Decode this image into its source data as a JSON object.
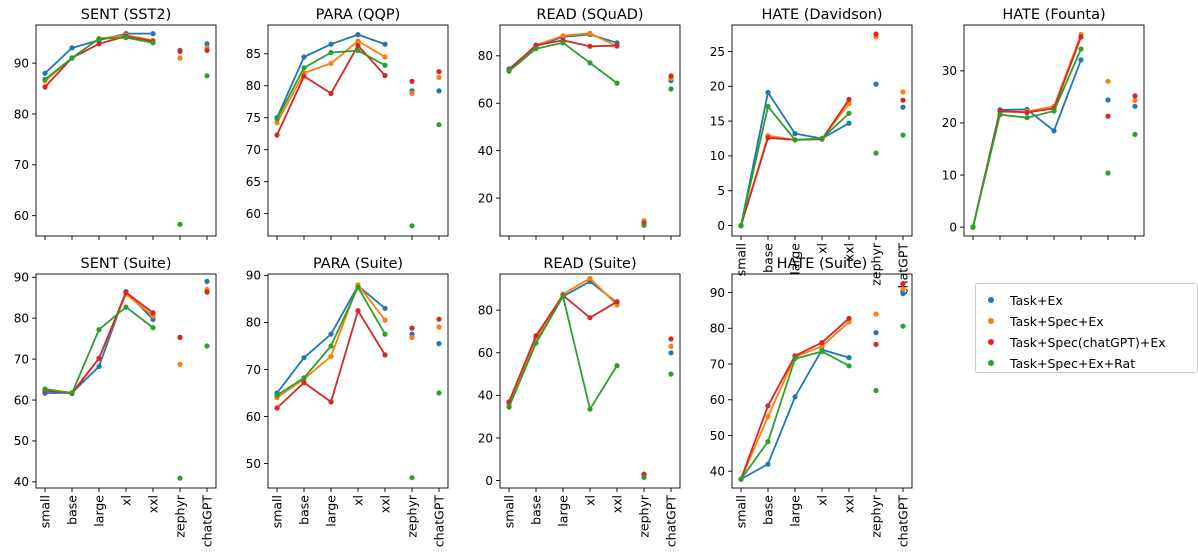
{
  "colors": {
    "Task+Ex": "#1f77b4",
    "Task+Spec+Ex": "#ff7f0e",
    "Task+Spec(chatGPT)+Ex": "#d62728",
    "Task+Spec+Ex+Rat": "#2ca02c"
  },
  "legend": {
    "items": [
      {
        "label": "Task+Ex",
        "color": "#1f77b4"
      },
      {
        "label": "Task+Spec+Ex",
        "color": "#ff7f0e"
      },
      {
        "label": "Task+Spec(chatGPT)+Ex",
        "color": "#d62728"
      },
      {
        "label": "Task+Spec+Ex+Rat",
        "color": "#2ca02c"
      }
    ]
  },
  "chart_data": [
    {
      "type": "line",
      "title": "SENT (SST2)",
      "categories": [
        "small",
        "base",
        "large",
        "xl",
        "xxl",
        "zephyr",
        "chatGPT"
      ],
      "yticks": [
        60,
        70,
        80,
        90
      ],
      "ylim": [
        56,
        97.5
      ],
      "series": [
        {
          "name": "Task+Ex",
          "values": [
            88,
            93,
            94.5,
            95.8,
            95.8,
            92.5,
            93.8
          ]
        },
        {
          "name": "Task+Spec+Ex",
          "values": [
            86.5,
            91,
            94.8,
            95.5,
            94.5,
            91,
            93
          ]
        },
        {
          "name": "Task+Spec(chatGPT)+Ex",
          "values": [
            85.3,
            91,
            93.8,
            95.3,
            94.3,
            92.3,
            92.5
          ]
        },
        {
          "name": "Task+Spec+Ex+Rat",
          "values": [
            86.8,
            91,
            94.8,
            95,
            94,
            58.3,
            87.5
          ]
        }
      ]
    },
    {
      "type": "line",
      "title": "PARA (QQP)",
      "categories": [
        "small",
        "base",
        "large",
        "xl",
        "xxl",
        "zephyr",
        "chatGPT"
      ],
      "yticks": [
        60,
        65,
        70,
        75,
        80,
        85
      ],
      "ylim": [
        56.5,
        89.5
      ],
      "series": [
        {
          "name": "Task+Ex",
          "values": [
            75,
            84.5,
            86.5,
            88,
            86.5,
            79.2,
            79.2
          ]
        },
        {
          "name": "Task+Spec+Ex",
          "values": [
            74.2,
            82,
            83.5,
            87,
            84.5,
            78.8,
            81.3
          ]
        },
        {
          "name": "Task+Spec(chatGPT)+Ex",
          "values": [
            72.3,
            81.5,
            78.8,
            86.3,
            81.6,
            80.7,
            82.2
          ]
        },
        {
          "name": "Task+Spec+Ex+Rat",
          "values": [
            74.8,
            82.8,
            85.2,
            85.5,
            83.2,
            58.1,
            73.9
          ]
        }
      ]
    },
    {
      "type": "line",
      "title": "READ (SQuAD)",
      "categories": [
        "small",
        "base",
        "large",
        "xl",
        "xxl",
        "zephyr",
        "chatGPT"
      ],
      "yticks": [
        20,
        40,
        60,
        80
      ],
      "ylim": [
        4,
        93
      ],
      "series": [
        {
          "name": "Task+Ex",
          "values": [
            74.5,
            84,
            88,
            89,
            85.5,
            9,
            69.5
          ]
        },
        {
          "name": "Task+Spec+Ex",
          "values": [
            74,
            84.5,
            88.5,
            89.5,
            84,
            10.5,
            70.5
          ]
        },
        {
          "name": "Task+Spec(chatGPT)+Ex",
          "values": [
            74,
            84.5,
            86.5,
            84,
            84.3,
            9.5,
            71.5
          ]
        },
        {
          "name": "Task+Spec+Ex+Rat",
          "values": [
            73.5,
            83,
            85.5,
            77,
            68.5,
            8.5,
            66
          ]
        }
      ]
    },
    {
      "type": "line",
      "title": "HATE (Davidson)",
      "categories": [
        "small",
        "base",
        "large",
        "xl",
        "xxl",
        "zephyr",
        "chatGPT"
      ],
      "yticks": [
        0,
        5,
        10,
        15,
        20,
        25
      ],
      "ylim": [
        -1.5,
        28.8
      ],
      "series": [
        {
          "name": "Task+Ex",
          "values": [
            0,
            19.1,
            13.2,
            12.5,
            14.7,
            20.3,
            17
          ]
        },
        {
          "name": "Task+Spec+Ex",
          "values": [
            0,
            12.9,
            12.3,
            12.5,
            17.5,
            27.1,
            19.2
          ]
        },
        {
          "name": "Task+Spec(chatGPT)+Ex",
          "values": [
            0,
            12.6,
            12.3,
            12.4,
            18.1,
            27.5,
            18
          ]
        },
        {
          "name": "Task+Spec+Ex+Rat",
          "values": [
            0,
            17.1,
            12.3,
            12.5,
            16.1,
            10.4,
            13
          ]
        }
      ]
    },
    {
      "type": "line",
      "title": "HATE (Founta)",
      "categories": [
        "small",
        "base",
        "large",
        "xl",
        "xxl",
        "zephyr",
        "chatGPT"
      ],
      "yticks": [
        0,
        10,
        20,
        30
      ],
      "ylim": [
        -1.7,
        38.8
      ],
      "series": [
        {
          "name": "Task+Ex",
          "values": [
            0,
            22.5,
            22.6,
            18.5,
            32.1,
            24.4,
            23.2
          ]
        },
        {
          "name": "Task+Spec+Ex",
          "values": [
            0,
            22.1,
            22.2,
            23.2,
            37,
            28,
            24.3
          ]
        },
        {
          "name": "Task+Spec(chatGPT)+Ex",
          "values": [
            0,
            22.3,
            22,
            22.8,
            36.5,
            21.3,
            25.2
          ]
        },
        {
          "name": "Task+Spec+Ex+Rat",
          "values": [
            0,
            21.6,
            21,
            22.3,
            34.2,
            10.4,
            17.8
          ]
        }
      ]
    },
    {
      "type": "line",
      "title": "SENT (Suite)",
      "categories": [
        "small",
        "base",
        "large",
        "xl",
        "xxl",
        "zephyr",
        "chatGPT"
      ],
      "yticks": [
        40,
        50,
        60,
        70,
        80,
        90
      ],
      "ylim": [
        38.5,
        90.8
      ],
      "series": [
        {
          "name": "Task+Ex",
          "values": [
            61.7,
            61.8,
            68.2,
            86.5,
            79.7,
            75.3,
            89
          ]
        },
        {
          "name": "Task+Spec+Ex",
          "values": [
            62.5,
            61.8,
            70.2,
            85.9,
            80.5,
            68.7,
            87
          ]
        },
        {
          "name": "Task+Spec(chatGPT)+Ex",
          "values": [
            62.3,
            61.6,
            70.2,
            86.3,
            81.3,
            75.3,
            86.4
          ]
        },
        {
          "name": "Task+Spec+Ex+Rat",
          "values": [
            62.7,
            61.7,
            77.2,
            82.7,
            77.7,
            40.9,
            73.2
          ]
        }
      ]
    },
    {
      "type": "line",
      "title": "PARA (Suite)",
      "categories": [
        "small",
        "base",
        "large",
        "xl",
        "xxl",
        "zephyr",
        "chatGPT"
      ],
      "yticks": [
        50,
        60,
        70,
        80,
        90
      ],
      "ylim": [
        44.8,
        90.3
      ],
      "series": [
        {
          "name": "Task+Ex",
          "values": [
            65,
            72.5,
            77.5,
            87.8,
            83,
            77.5,
            75.5
          ]
        },
        {
          "name": "Task+Spec+Ex",
          "values": [
            64,
            68,
            72.8,
            88,
            80.5,
            76.8,
            79
          ]
        },
        {
          "name": "Task+Spec(chatGPT)+Ex",
          "values": [
            61.8,
            67.2,
            63.1,
            82.5,
            73.1,
            78.8,
            80.7
          ]
        },
        {
          "name": "Task+Spec+Ex+Rat",
          "values": [
            64.5,
            68.2,
            75,
            87.5,
            77.5,
            47,
            65
          ]
        }
      ]
    },
    {
      "type": "line",
      "title": "READ (Suite)",
      "categories": [
        "small",
        "base",
        "large",
        "xl",
        "xxl",
        "zephyr",
        "chatGPT"
      ],
      "yticks": [
        0,
        20,
        40,
        60,
        80
      ],
      "ylim": [
        -3.5,
        97
      ],
      "series": [
        {
          "name": "Task+Ex",
          "values": [
            36,
            67,
            86.5,
            93.5,
            83.5,
            3,
            60
          ]
        },
        {
          "name": "Task+Spec+Ex",
          "values": [
            35.5,
            66,
            87.5,
            95,
            82.5,
            2.5,
            63
          ]
        },
        {
          "name": "Task+Spec(chatGPT)+Ex",
          "values": [
            37,
            68,
            87,
            76.5,
            84,
            3,
            66.5
          ]
        },
        {
          "name": "Task+Spec+Ex+Rat",
          "values": [
            34.5,
            64.5,
            86.5,
            33.5,
            54,
            1.5,
            50
          ]
        }
      ]
    },
    {
      "type": "line",
      "title": "HATE (Suite)",
      "categories": [
        "small",
        "base",
        "large",
        "xl",
        "xxl",
        "zephyr",
        "chatGPT"
      ],
      "yticks": [
        40,
        50,
        60,
        70,
        80,
        90
      ],
      "ylim": [
        35.3,
        95.2
      ],
      "series": [
        {
          "name": "Task+Ex",
          "values": [
            37.8,
            42,
            60.8,
            74,
            71.8,
            78.8,
            89.7
          ]
        },
        {
          "name": "Task+Spec+Ex",
          "values": [
            37.8,
            55.3,
            72,
            75,
            81.8,
            84,
            91
          ]
        },
        {
          "name": "Task+Spec(chatGPT)+Ex",
          "values": [
            37.8,
            58.3,
            72.3,
            76,
            82.8,
            75.5,
            92.5
          ]
        },
        {
          "name": "Task+Spec+Ex+Rat",
          "values": [
            37.8,
            48.3,
            71.5,
            73.5,
            69.5,
            62.6,
            80.6
          ]
        }
      ]
    }
  ]
}
